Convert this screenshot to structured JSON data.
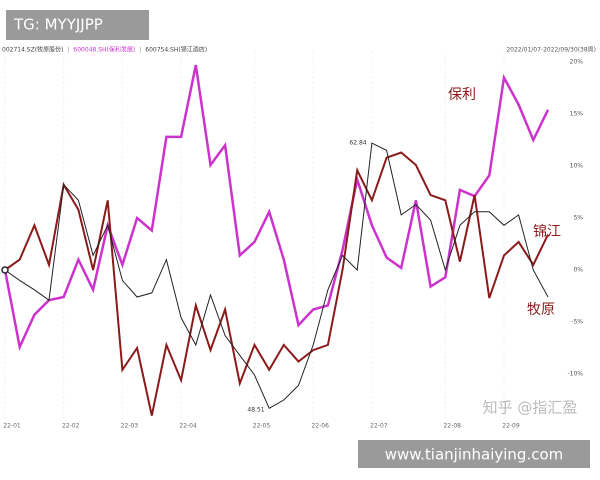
{
  "chart_data": {
    "type": "line",
    "date_range": "2022/01/07-2022/09/30(38周)",
    "categories": [
      "22-01",
      null,
      null,
      null,
      "22-02",
      null,
      null,
      null,
      "22-03",
      null,
      null,
      null,
      "22-04",
      null,
      null,
      null,
      null,
      "22-05",
      null,
      null,
      null,
      "22-06",
      null,
      null,
      null,
      "22-07",
      null,
      null,
      null,
      null,
      "22-08",
      null,
      null,
      null,
      "22-09",
      null,
      null,
      null
    ],
    "series": [
      {
        "name": "002714.SZ(牧原股份)",
        "color": "#8b1a1a",
        "values": [
          0,
          1.0,
          4.3,
          0.5,
          8.2,
          5.8,
          0,
          6.7,
          -9.6,
          -7.5,
          -14.0,
          -7.2,
          -10.6,
          -3.4,
          -7.7,
          -3.8,
          -10.9,
          -7.2,
          -9.6,
          -7.2,
          -8.8,
          -7.7,
          -7.2,
          0,
          9.6,
          6.7,
          10.8,
          11.3,
          10.1,
          7.2,
          6.7,
          0.8,
          7.2,
          -2.7,
          1.4,
          2.7,
          0.5,
          3.4
        ]
      },
      {
        "name": "600048.SH(保利发展)",
        "color": "#cc33cc",
        "values": [
          0,
          -7.4,
          -4.3,
          -2.9,
          -2.6,
          1.0,
          -1.9,
          4.3,
          0.5,
          5.0,
          3.8,
          12.8,
          12.8,
          19.7,
          10.1,
          12.0,
          1.4,
          2.7,
          5.6,
          1.0,
          -5.3,
          -3.8,
          -3.4,
          1.9,
          8.7,
          4.3,
          1.2,
          0.2,
          6.7,
          -1.6,
          -0.7,
          7.7,
          7.1,
          9.1,
          18.5,
          15.9,
          12.5,
          15.4
        ]
      },
      {
        "name": "600754.SH(锦江酒店)",
        "color": "#222222",
        "values": [
          0,
          -1.0,
          -1.9,
          -2.9,
          8.2,
          6.7,
          1.4,
          4.3,
          -1.0,
          -2.6,
          -2.2,
          1.0,
          -4.6,
          -7.2,
          -2.4,
          -6.3,
          -8.2,
          -10.1,
          -13.3,
          -12.5,
          -11.1,
          -7.2,
          -1.9,
          1.4,
          0,
          12.2,
          11.5,
          5.3,
          6.3,
          4.8,
          0,
          4.3,
          5.6,
          5.6,
          4.3,
          5.3,
          0,
          -2.6
        ]
      }
    ],
    "ylim": [
      -15,
      21
    ],
    "yticks": [
      {
        "value": -10,
        "label": "-10%"
      },
      {
        "value": -5,
        "label": "-5%"
      },
      {
        "value": 0,
        "label": "0%"
      },
      {
        "value": 5,
        "label": "5%"
      },
      {
        "value": 10,
        "label": "10%"
      },
      {
        "value": 15,
        "label": "15%"
      },
      {
        "value": 20,
        "label": "20%"
      }
    ],
    "annotations": [
      "保利",
      "锦江",
      "牧原",
      "62.84",
      "48.51"
    ]
  },
  "watermarks": [
    "TG: MYYJJPP",
    "知乎 @指汇盈",
    "www.tianjinhaiying.com"
  ]
}
